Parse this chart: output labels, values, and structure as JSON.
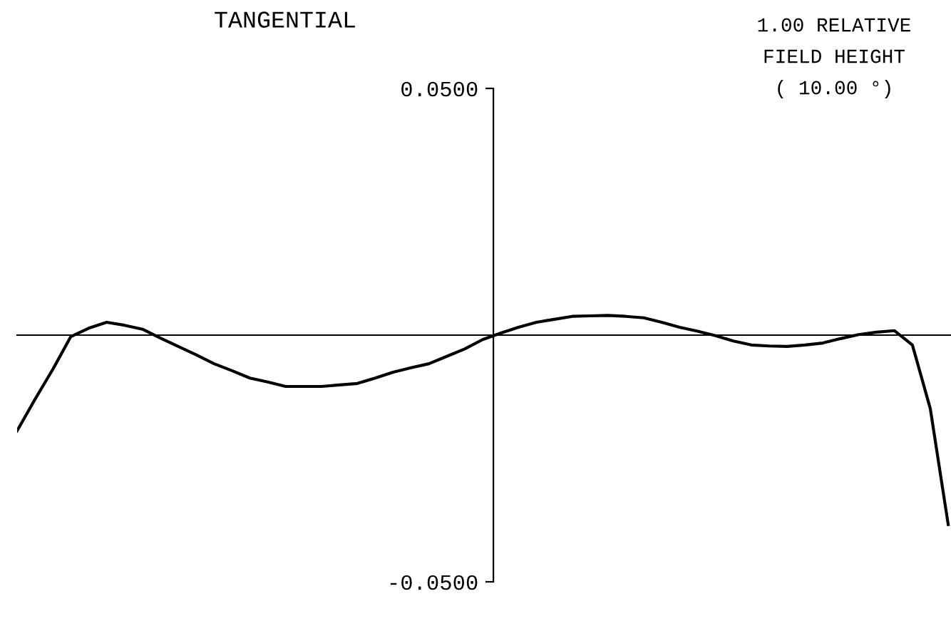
{
  "chart_data": {
    "type": "line",
    "title": "TANGENTIAL",
    "annotations": [
      "1.00 RELATIVE\nFIELD HEIGHT\n( 10.00 °)"
    ],
    "categories": [
      null,
      null,
      null,
      null,
      null,
      null,
      null,
      null,
      null,
      null,
      null,
      null,
      null,
      null,
      null,
      null,
      null,
      null,
      null,
      null,
      null,
      null,
      null,
      null,
      null,
      null,
      null,
      null,
      null,
      null,
      null,
      null,
      null,
      null,
      null,
      null,
      null,
      null,
      null,
      null,
      null,
      null,
      null,
      null,
      null,
      null,
      null,
      null,
      null,
      null,
      null,
      null,
      null
    ],
    "series": [
      {
        "color": "#000000",
        "values": [
          -0.0194,
          -0.013,
          -0.0069,
          -0.0003,
          0.0014,
          0.0026,
          0.002,
          0.0012,
          -0.0006,
          -0.0023,
          -0.004,
          -0.0058,
          -0.0072,
          -0.0087,
          -0.0095,
          -0.0104,
          -0.0104,
          -0.0104,
          -0.0101,
          -0.0098,
          -0.0087,
          -0.0075,
          -0.0066,
          -0.0058,
          -0.0043,
          -0.0028,
          -0.0009,
          0.0004,
          0.0016,
          0.0026,
          0.0032,
          0.0038,
          0.0039,
          0.004,
          0.0038,
          0.0035,
          0.0026,
          0.0016,
          0.0008,
          -0.0001,
          -0.0012,
          -0.002,
          -0.0022,
          -0.0023,
          -0.002,
          -0.0016,
          -0.0007,
          0.0001,
          0.0006,
          0.0009,
          -0.002,
          -0.0149,
          -0.0384
        ]
      }
    ],
    "ylim": [
      -0.05,
      0.05
    ],
    "yticks": [
      {
        "value": -0.05,
        "label": "-0.0500"
      },
      {
        "value": 0.05,
        "label": "0.0500"
      }
    ],
    "tick_labels": "y",
    "grid": false,
    "marker": "none",
    "line_style": "solid"
  }
}
